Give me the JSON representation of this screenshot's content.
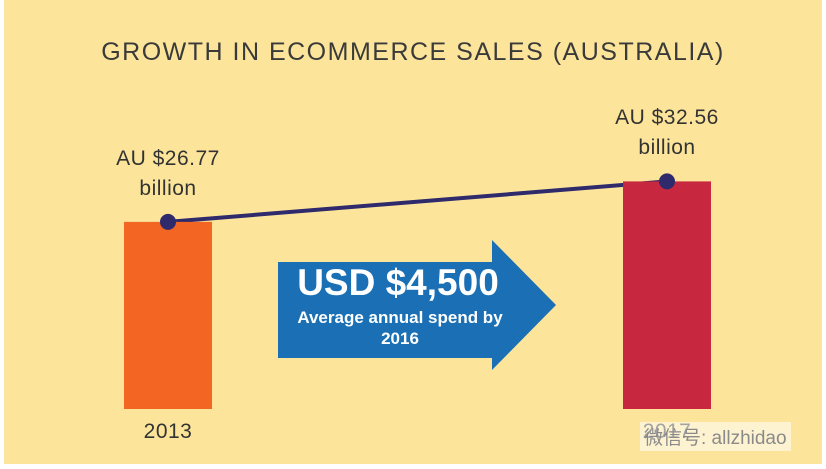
{
  "chart_data": {
    "type": "bar",
    "title": "GROWTH IN ECOMMERCE SALES (AUSTRALIA)",
    "categories": [
      "2013",
      "2017"
    ],
    "values": [
      26.77,
      32.56
    ],
    "value_labels": [
      "AU $26.77 billion",
      "AU $32.56 billion"
    ],
    "colors": [
      "#f26522",
      "#c8283f"
    ],
    "line_color": "#2e2a6b",
    "callout": {
      "headline": "USD $4,500",
      "text": "Average annual spend by 2016"
    }
  },
  "watermark": "微信号: allzhidao"
}
